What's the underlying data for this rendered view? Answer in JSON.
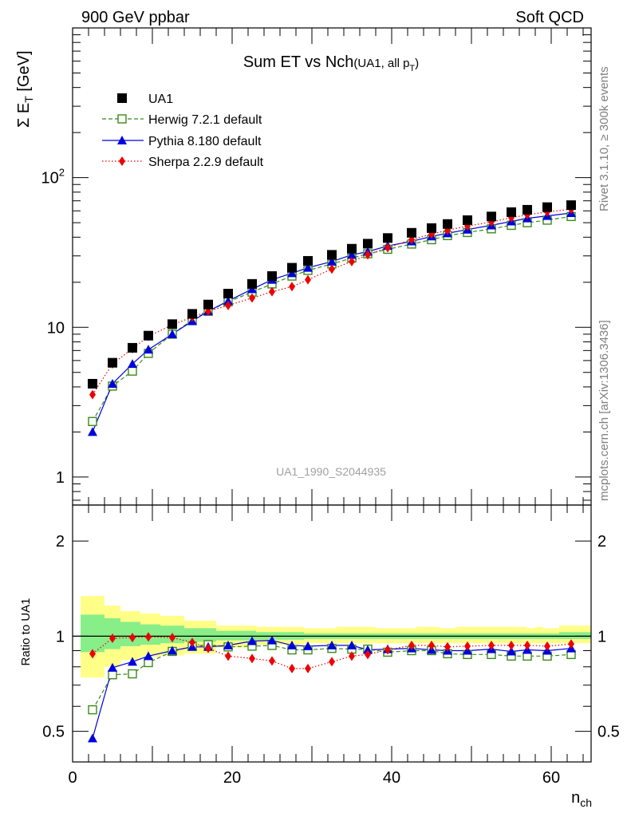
{
  "header": {
    "left": "900 GeV ppbar",
    "right": "Soft QCD"
  },
  "side_labels": {
    "rivet": "Rivet 3.1.10, ≥ 300k events",
    "mcplots": "mcplots.cern.ch [arXiv:1306.3436]"
  },
  "watermark": "UA1_1990_S2044935",
  "colors": {
    "data": "#000000",
    "herwig": "#3a8a1a",
    "pythia": "#0000dd",
    "sherpa": "#ee0000",
    "band_outer": "#ffff88",
    "band_inner": "#88ee88"
  },
  "chart_data": [
    {
      "type": "scatter",
      "title_main": "Sum ET vs Nch",
      "title_sub": "(UA1, all p",
      "title_sub_index": "T",
      "title_sub_close": ")",
      "ylabel_main": "Σ E",
      "ylabel_index": "T",
      "ylabel_unit": " [GeV]",
      "yscale": "log",
      "xlim": [
        0,
        65
      ],
      "ylim": [
        0.65,
        1000
      ],
      "yticks": [
        {
          "value": 1,
          "label": "1"
        },
        {
          "value": 10,
          "label": "10"
        },
        {
          "value": 100,
          "label": "10",
          "sup": "2"
        }
      ],
      "legend_position": "top-left",
      "x": [
        2.5,
        5,
        7.5,
        9.5,
        12.5,
        15,
        17,
        19.5,
        22.5,
        25,
        27.5,
        29.5,
        32.5,
        35,
        37,
        39.5,
        42.5,
        45,
        47,
        49.5,
        52.5,
        55,
        57,
        59.5,
        62.5
      ],
      "series": [
        {
          "name": "UA1",
          "marker": "square-filled",
          "values": [
            4.2,
            5.8,
            7.3,
            8.8,
            10.5,
            12.3,
            14.2,
            16.8,
            19.5,
            22.0,
            25.0,
            27.8,
            30.5,
            33.5,
            36.2,
            39.5,
            42.8,
            46.0,
            49.0,
            52.0,
            55.0,
            58.8,
            61.0,
            63.5,
            65.5
          ]
        },
        {
          "name": "Herwig 7.2.1 default",
          "marker": "square-open",
          "values": [
            2.35,
            4.05,
            5.1,
            6.7,
            9.0,
            11.2,
            12.8,
            14.8,
            17.2,
            19.5,
            22.0,
            24.0,
            26.5,
            29.0,
            31.0,
            33.2,
            36.0,
            38.5,
            41.0,
            43.0,
            45.5,
            48.0,
            50.0,
            52.0,
            55.0
          ]
        },
        {
          "name": "Pythia 8.180 default",
          "marker": "triangle",
          "values": [
            2.0,
            4.2,
            5.7,
            7.1,
            9.0,
            11.0,
            12.8,
            15.0,
            18.0,
            20.8,
            23.0,
            25.0,
            27.5,
            30.5,
            32.0,
            35.0,
            37.5,
            40.5,
            42.5,
            45.0,
            48.0,
            51.0,
            53.5,
            55.5,
            58.0
          ]
        },
        {
          "name": "Sherpa 2.2.9 default",
          "marker": "diamond",
          "values": [
            3.55,
            5.7,
            7.2,
            8.7,
            10.4,
            11.7,
            12.8,
            14.0,
            15.7,
            17.3,
            18.7,
            20.8,
            24.5,
            27.5,
            30.5,
            34.0,
            38.5,
            42.0,
            44.5,
            47.5,
            50.5,
            54.0,
            56.5,
            59.0,
            61.5
          ]
        }
      ]
    },
    {
      "type": "scatter",
      "ylabel": "Ratio to UA1",
      "xlabel_main": "n",
      "xlabel_index": "ch",
      "yscale": "log",
      "xlim": [
        0,
        65
      ],
      "ylim": [
        0.4,
        2.6
      ],
      "xticks": [
        0,
        20,
        40,
        60
      ],
      "yticks": [
        {
          "value": 0.5,
          "label": "0.5"
        },
        {
          "value": 1,
          "label": "1"
        },
        {
          "value": 2,
          "label": "2"
        }
      ],
      "band_edges": [
        1,
        4,
        6,
        8.5,
        11,
        14,
        18,
        23,
        29,
        33,
        38,
        43,
        46,
        48,
        52,
        57,
        58,
        59,
        61,
        65
      ],
      "band_outer": [
        [
          0.74,
          1.34
        ],
        [
          0.8,
          1.25
        ],
        [
          0.84,
          1.2
        ],
        [
          0.86,
          1.18
        ],
        [
          0.87,
          1.16
        ],
        [
          0.88,
          1.12
        ],
        [
          0.92,
          1.08
        ],
        [
          0.94,
          1.07
        ],
        [
          0.95,
          1.06
        ],
        [
          0.95,
          1.07
        ],
        [
          0.95,
          1.06
        ],
        [
          0.95,
          1.07
        ],
        [
          0.95,
          1.06
        ],
        [
          0.95,
          1.07
        ],
        [
          0.95,
          1.07
        ],
        [
          0.95,
          1.06
        ],
        [
          0.95,
          1.07
        ],
        [
          0.95,
          1.06
        ],
        [
          0.95,
          1.08
        ]
      ],
      "band_inner": [
        [
          0.89,
          1.17
        ],
        [
          0.91,
          1.14
        ],
        [
          0.93,
          1.11
        ],
        [
          0.94,
          1.09
        ],
        [
          0.95,
          1.08
        ],
        [
          0.96,
          1.06
        ],
        [
          0.97,
          1.04
        ],
        [
          0.975,
          1.03
        ],
        [
          0.98,
          1.02
        ],
        [
          0.98,
          1.02
        ],
        [
          0.98,
          1.02
        ],
        [
          0.98,
          1.02
        ],
        [
          0.98,
          1.02
        ],
        [
          0.98,
          1.02
        ],
        [
          0.98,
          1.02
        ],
        [
          0.98,
          1.02
        ],
        [
          0.98,
          1.02
        ],
        [
          0.98,
          1.02
        ],
        [
          0.98,
          1.03
        ]
      ],
      "series": [
        {
          "name": "Herwig 7.2.1 default",
          "values": [
            0.585,
            0.755,
            0.76,
            0.825,
            0.895,
            0.93,
            0.94,
            0.925,
            0.93,
            0.935,
            0.905,
            0.905,
            0.915,
            0.91,
            0.91,
            0.89,
            0.9,
            0.9,
            0.88,
            0.875,
            0.875,
            0.865,
            0.865,
            0.865,
            0.875
          ]
        },
        {
          "name": "Pythia 8.180 default",
          "values": [
            0.475,
            0.795,
            0.83,
            0.865,
            0.9,
            0.925,
            0.925,
            0.935,
            0.965,
            0.97,
            0.935,
            0.93,
            0.935,
            0.935,
            0.905,
            0.91,
            0.915,
            0.905,
            0.9,
            0.9,
            0.91,
            0.895,
            0.905,
            0.9,
            0.915
          ]
        },
        {
          "name": "Sherpa 2.2.9 default",
          "values": [
            0.88,
            0.985,
            0.99,
            0.995,
            0.99,
            0.955,
            0.915,
            0.865,
            0.85,
            0.835,
            0.79,
            0.79,
            0.83,
            0.865,
            0.875,
            0.905,
            0.935,
            0.935,
            0.925,
            0.93,
            0.935,
            0.935,
            0.935,
            0.93,
            0.945
          ]
        }
      ]
    }
  ]
}
